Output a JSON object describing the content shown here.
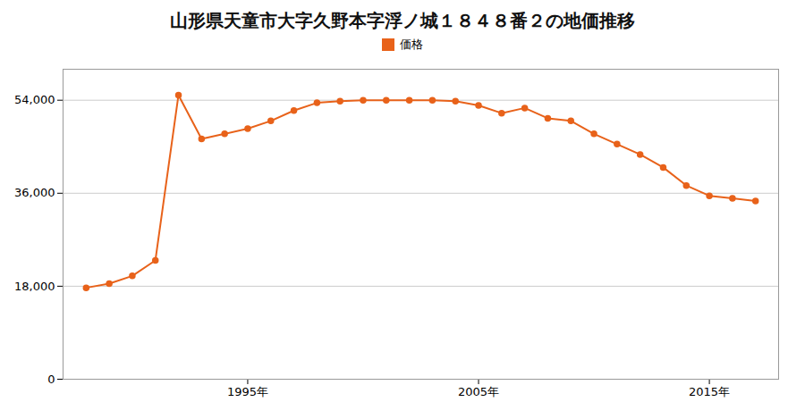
{
  "chart_data": {
    "type": "line",
    "title": "山形県天童市大字久野本字浮ノ城１８４８番２の地価推移",
    "x": [
      1988,
      1989,
      1990,
      1991,
      1992,
      1993,
      1994,
      1995,
      1996,
      1997,
      1998,
      1999,
      2000,
      2001,
      2002,
      2003,
      2004,
      2005,
      2006,
      2007,
      2008,
      2009,
      2010,
      2011,
      2012,
      2013,
      2014,
      2015,
      2016,
      2017
    ],
    "series": [
      {
        "name": "価格",
        "color": "#e8621a",
        "marker": "circle",
        "values": [
          17700,
          18500,
          20000,
          23000,
          55000,
          46500,
          47500,
          48500,
          50000,
          52000,
          53500,
          53800,
          54000,
          54000,
          54000,
          54000,
          53800,
          53000,
          51500,
          52500,
          50500,
          50000,
          47500,
          45500,
          43500,
          41000,
          37500,
          35500,
          35000,
          34500
        ]
      }
    ],
    "xlim": [
      1987,
      2018
    ],
    "xticks": [
      {
        "value": 1995,
        "label": "1995年"
      },
      {
        "value": 2005,
        "label": "2005年"
      },
      {
        "value": 2015,
        "label": "2015年"
      }
    ],
    "ylim": [
      0,
      60000
    ],
    "yticks": [
      0,
      {
        "value": 18000,
        "label": "18,000"
      },
      {
        "value": 36000,
        "label": "36,000"
      },
      {
        "value": 54000,
        "label": "54,000"
      }
    ],
    "grid": true,
    "legend": "top"
  }
}
